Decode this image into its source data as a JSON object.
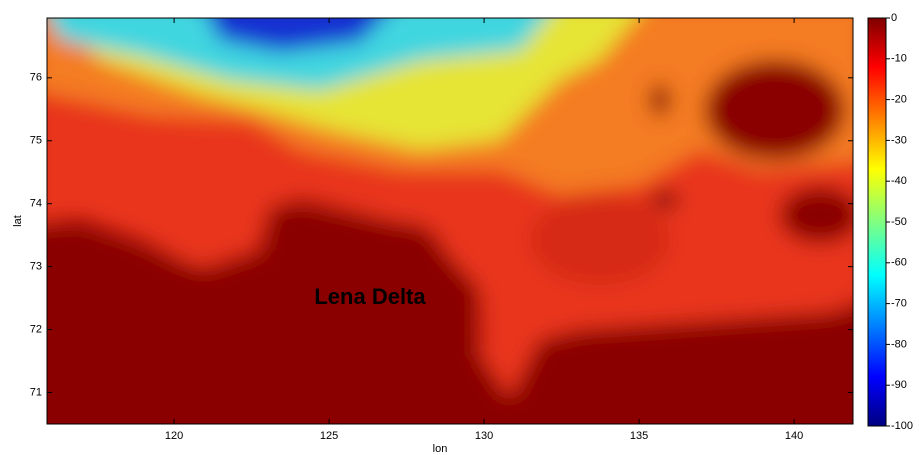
{
  "chart_data": {
    "type": "heatmap",
    "xlabel": "lon",
    "ylabel": "lat",
    "annotation": "Lena Delta",
    "xlim": [
      115.9,
      141.9
    ],
    "xticks": [
      120,
      125,
      130,
      135,
      140
    ],
    "ylim": [
      70.5,
      76.95
    ],
    "yticks": [
      71,
      72,
      73,
      74,
      75,
      76
    ],
    "colorbar": {
      "lim": [
        -100,
        0
      ],
      "ticks": [
        0,
        -10,
        -20,
        -30,
        -40,
        -50,
        -60,
        -70,
        -80,
        -90,
        -100
      ]
    }
  }
}
